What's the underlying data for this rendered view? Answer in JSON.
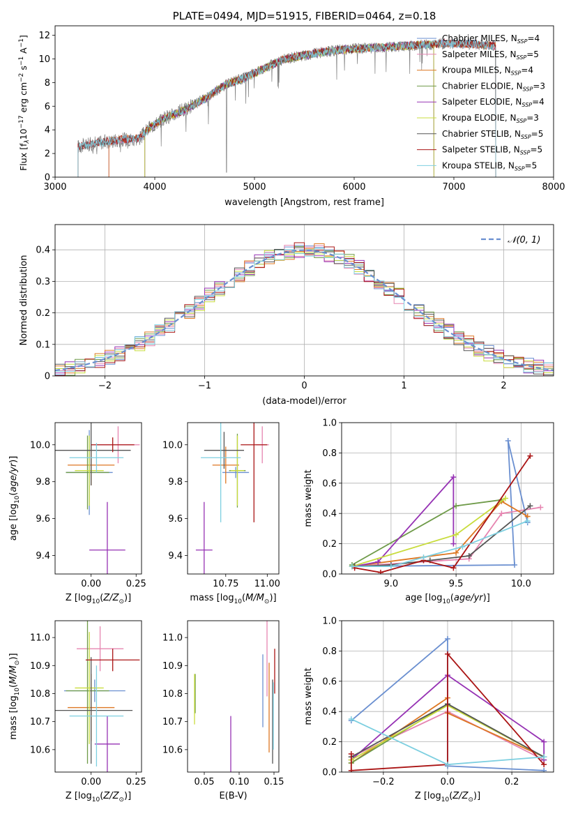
{
  "colors": {
    "blue": "#6a8fd0",
    "orange": "#dd7722",
    "green": "#6e9a48",
    "purple": "#9632b4",
    "lime": "#c8dc3c",
    "gray": "#555555",
    "red": "#aa1414",
    "cyan": "#7dcfe0",
    "pink": "#e684b0",
    "spectrum": "#808080"
  },
  "chart_data": [
    {
      "id": "spectrum",
      "type": "line",
      "title": "PLATE=0494, MJD=51915, FIBERID=0464, z=0.18",
      "xlabel": "wavelength [Angstrom, rest frame]",
      "ylabel": "Flux [f_λ10^-17 erg cm^-2 s^-1 A^-1]",
      "ylabel_parts": {
        "a": "Flux [f",
        "a_sub": "λ",
        "b": "10",
        "b_sup": "−17",
        "c": " erg cm",
        "c_sup": "−2",
        "d": " s",
        "d_sup": "−1",
        "e": " A",
        "e_sup": "−1",
        "f": "]"
      },
      "xlim": [
        3000,
        8000
      ],
      "ylim": [
        0,
        12.8
      ],
      "xticks": [
        3000,
        4000,
        5000,
        6000,
        7000,
        8000
      ],
      "yticks": [
        0,
        2,
        4,
        6,
        8,
        10,
        12
      ],
      "legend_position": "upper-right",
      "legend": [
        {
          "pre": "Chabrier MILES, N",
          "sub": "SSP",
          "post": "=4",
          "color": "blue"
        },
        {
          "pre": "Salpeter MILES, N",
          "sub": "SSP",
          "post": "=5",
          "color": "pink"
        },
        {
          "pre": "Kroupa MILES, N",
          "sub": "SSP",
          "post": "=4",
          "color": "orange"
        },
        {
          "pre": "Chabrier ELODIE, N",
          "sub": "SSP",
          "post": "=3",
          "color": "green"
        },
        {
          "pre": "Salpeter ELODIE, N",
          "sub": "SSP",
          "post": "=4",
          "color": "purple"
        },
        {
          "pre": "Kroupa ELODIE, N",
          "sub": "SSP",
          "post": "=3",
          "color": "lime"
        },
        {
          "pre": "Chabrier STELIB, N",
          "sub": "SSP",
          "post": "=5",
          "color": "gray"
        },
        {
          "pre": "Salpeter STELIB, N",
          "sub": "SSP",
          "post": "=5",
          "color": "red"
        },
        {
          "pre": "Kroupa STELIB, N",
          "sub": "SSP",
          "post": "=5",
          "color": "cyan"
        }
      ],
      "continuum": [
        [
          3230,
          2.6
        ],
        [
          3500,
          3.0
        ],
        [
          3700,
          3.2
        ],
        [
          3850,
          3.3
        ],
        [
          3950,
          4.2
        ],
        [
          4100,
          5.0
        ],
        [
          4300,
          5.7
        ],
        [
          4500,
          6.6
        ],
        [
          4700,
          7.8
        ],
        [
          4900,
          8.4
        ],
        [
          5100,
          9.2
        ],
        [
          5300,
          10.0
        ],
        [
          5500,
          10.3
        ],
        [
          5700,
          10.6
        ],
        [
          5900,
          10.8
        ],
        [
          6100,
          10.9
        ],
        [
          6300,
          11.0
        ],
        [
          6500,
          11.1
        ],
        [
          6700,
          11.2
        ],
        [
          6900,
          11.3
        ],
        [
          7100,
          11.3
        ],
        [
          7300,
          11.2
        ],
        [
          7420,
          11.1
        ]
      ],
      "model_ranges": {
        "MILES": [
          3540,
          7420
        ],
        "ELODIE": [
          3900,
          6800
        ],
        "STELIB": [
          3230,
          7420
        ]
      }
    },
    {
      "id": "residuals",
      "type": "histogram",
      "xlabel": "(data-model)/error",
      "ylabel": "Normed distribution",
      "xlim": [
        -2.5,
        2.5
      ],
      "ylim": [
        0,
        0.48
      ],
      "xticks": [
        -2,
        -1,
        0,
        1,
        2
      ],
      "xtick_labels": [
        "−2",
        "−1",
        "0",
        "1",
        "2"
      ],
      "yticks": [
        0.0,
        0.1,
        0.2,
        0.3,
        0.4
      ],
      "grid": true,
      "bin_width": 0.1,
      "legend": [
        {
          "label": "𝒩(0, 1)",
          "color": "blue"
        }
      ],
      "legend_position": "upper-right"
    },
    {
      "id": "age-vs-Z",
      "type": "errorbar",
      "xlabel": "Z [log10(Z/Z⊙)]",
      "ylabel": "age  [log10(age/yr)]",
      "xlim": [
        -0.2,
        0.28
      ],
      "ylim": [
        9.3,
        10.12
      ],
      "xticks": [
        0.0,
        0.25
      ],
      "xtick_labels": [
        "0.00",
        "0.25"
      ],
      "yticks": [
        9.4,
        9.6,
        9.8,
        10.0
      ],
      "ytick_labels": [
        "9.4",
        "9.6",
        "9.8",
        "10.0"
      ],
      "points": [
        {
          "c": "blue",
          "x": -0.01,
          "y": 9.85,
          "xerr": 0.13,
          "yerr": 0.23
        },
        {
          "c": "pink",
          "x": 0.15,
          "y": 10.0,
          "xerr": 0.12,
          "yerr": 0.1
        },
        {
          "c": "orange",
          "x": 0.0,
          "y": 9.89,
          "xerr": 0.13,
          "yerr": 0.11
        },
        {
          "c": "green",
          "x": -0.02,
          "y": 9.85,
          "xerr": 0.12,
          "yerr": 0.2
        },
        {
          "c": "purple",
          "x": 0.09,
          "y": 9.43,
          "xerr": 0.1,
          "yerr": 0.26
        },
        {
          "c": "lime",
          "x": -0.01,
          "y": 9.86,
          "xerr": 0.08,
          "yerr": 0.19
        },
        {
          "c": "gray",
          "x": 0.0,
          "y": 9.97,
          "xerr": 0.22,
          "yerr": 0.19
        },
        {
          "c": "red",
          "x": 0.12,
          "y": 10.0,
          "xerr": 0.12,
          "yerr": 0.04
        },
        {
          "c": "cyan",
          "x": 0.03,
          "y": 9.93,
          "xerr": 0.15,
          "yerr": 0.08
        }
      ]
    },
    {
      "id": "age-vs-mass",
      "type": "errorbar",
      "xlabel": "mass [log10(M/M⊙)]",
      "ylabel": "",
      "xlim": [
        10.52,
        11.07
      ],
      "ylim": [
        9.3,
        10.12
      ],
      "xticks": [
        10.75,
        11.0
      ],
      "xtick_labels": [
        "10.75",
        "11.00"
      ],
      "yticks": [
        9.4,
        9.6,
        9.8,
        10.0
      ],
      "ytick_labels": [
        "9.4",
        "9.6",
        "9.8",
        "10.0"
      ],
      "points": [
        {
          "c": "blue",
          "x": 10.81,
          "y": 9.85,
          "xerr": 0.08,
          "yerr": 0.03
        },
        {
          "c": "pink",
          "x": 10.97,
          "y": 10.0,
          "xerr": 0.04,
          "yerr": 0.1
        },
        {
          "c": "orange",
          "x": 10.75,
          "y": 9.89,
          "xerr": 0.08,
          "yerr": 0.1
        },
        {
          "c": "green",
          "x": 10.82,
          "y": 9.86,
          "xerr": 0.05,
          "yerr": 0.2
        },
        {
          "c": "purple",
          "x": 10.62,
          "y": 9.43,
          "xerr": 0.05,
          "yerr": 0.26
        },
        {
          "c": "lime",
          "x": 10.82,
          "y": 9.86,
          "xerr": 0.04,
          "yerr": 0.19
        },
        {
          "c": "gray",
          "x": 10.74,
          "y": 9.97,
          "xerr": 0.12,
          "yerr": 0.1
        },
        {
          "c": "red",
          "x": 10.92,
          "y": 10.0,
          "xerr": 0.08,
          "yerr": 0.42
        },
        {
          "c": "cyan",
          "x": 10.72,
          "y": 9.93,
          "xerr": 0.12,
          "yerr": 0.35
        }
      ]
    },
    {
      "id": "weight-vs-age",
      "type": "line",
      "xlabel": "age  [log10(age/yr)]",
      "ylabel": "mass weight",
      "xlim": [
        8.62,
        10.25
      ],
      "ylim": [
        0,
        1.0
      ],
      "xticks": [
        9.0,
        9.5,
        10.0
      ],
      "xtick_labels": [
        "9.0",
        "9.5",
        "10.0"
      ],
      "yticks": [
        0.0,
        0.2,
        0.4,
        0.6,
        0.8,
        1.0
      ],
      "ytick_labels": [
        "0.0",
        "0.2",
        "0.4",
        "0.6",
        "0.8",
        "1.0"
      ],
      "grid": true,
      "series": [
        {
          "c": "blue",
          "x": [
            8.7,
            9.95,
            9.9,
            10.05
          ],
          "y": [
            0.05,
            0.06,
            0.88,
            0.34
          ]
        },
        {
          "c": "pink",
          "x": [
            8.7,
            9.6,
            9.85,
            10.15
          ],
          "y": [
            0.05,
            0.1,
            0.4,
            0.44
          ]
        },
        {
          "c": "orange",
          "x": [
            8.7,
            9.5,
            9.85,
            10.05
          ],
          "y": [
            0.05,
            0.14,
            0.48,
            0.38
          ]
        },
        {
          "c": "green",
          "x": [
            8.7,
            9.5,
            9.85
          ],
          "y": [
            0.06,
            0.45,
            0.49
          ]
        },
        {
          "c": "purple",
          "x": [
            8.72,
            8.9,
            9.48,
            9.48
          ],
          "y": [
            0.05,
            0.08,
            0.64,
            0.2
          ]
        },
        {
          "c": "lime",
          "x": [
            8.7,
            9.5,
            9.88
          ],
          "y": [
            0.05,
            0.26,
            0.5
          ]
        },
        {
          "c": "gray",
          "x": [
            8.72,
            9.0,
            9.3,
            9.6,
            10.07
          ],
          "y": [
            0.05,
            0.06,
            0.09,
            0.12,
            0.45
          ]
        },
        {
          "c": "red",
          "x": [
            8.72,
            8.92,
            9.25,
            9.48,
            10.07
          ],
          "y": [
            0.04,
            0.01,
            0.09,
            0.04,
            0.78
          ]
        },
        {
          "c": "cyan",
          "x": [
            8.7,
            9.0,
            9.25,
            9.55,
            10.05
          ],
          "y": [
            0.05,
            0.05,
            0.11,
            0.18,
            0.35
          ]
        }
      ]
    },
    {
      "id": "mass-vs-Z",
      "type": "errorbar",
      "xlabel": "Z [log10(Z/Z⊙)]",
      "ylabel": "mass [log10(M/M⊙)]",
      "xlim": [
        -0.2,
        0.28
      ],
      "ylim": [
        10.52,
        11.06
      ],
      "xticks": [
        0.0,
        0.25
      ],
      "xtick_labels": [
        "0.00",
        "0.25"
      ],
      "yticks": [
        10.6,
        10.7,
        10.8,
        10.9,
        11.0
      ],
      "ytick_labels": [
        "10.6",
        "10.7",
        "10.8",
        "10.9",
        "11.0"
      ],
      "points": [
        {
          "c": "blue",
          "x": 0.02,
          "y": 10.81,
          "xerr": 0.17,
          "yerr": 0.04
        },
        {
          "c": "pink",
          "x": 0.05,
          "y": 10.96,
          "xerr": 0.13,
          "yerr": 0.08
        },
        {
          "c": "orange",
          "x": 0.0,
          "y": 10.75,
          "xerr": 0.13,
          "yerr": 0.12
        },
        {
          "c": "green",
          "x": -0.02,
          "y": 10.81,
          "xerr": 0.12,
          "yerr": 0.26
        },
        {
          "c": "purple",
          "x": 0.09,
          "y": 10.62,
          "xerr": 0.07,
          "yerr": 0.1
        },
        {
          "c": "lime",
          "x": -0.01,
          "y": 10.82,
          "xerr": 0.08,
          "yerr": 0.2
        },
        {
          "c": "gray",
          "x": 0.0,
          "y": 10.74,
          "xerr": 0.23,
          "yerr": 0.19
        },
        {
          "c": "red",
          "x": 0.12,
          "y": 10.92,
          "xerr": 0.15,
          "yerr": 0.04
        },
        {
          "c": "cyan",
          "x": 0.03,
          "y": 10.72,
          "xerr": 0.15,
          "yerr": 0.18
        }
      ]
    },
    {
      "id": "mass-vs-EBV",
      "type": "errorbar",
      "xlabel": "E(B-V)",
      "ylabel": "",
      "xlim": [
        0.026,
        0.157
      ],
      "ylim": [
        10.52,
        11.06
      ],
      "xticks": [
        0.05,
        0.1,
        0.15
      ],
      "xtick_labels": [
        "0.05",
        "0.10",
        "0.15"
      ],
      "yticks": [
        10.6,
        10.7,
        10.8,
        10.9,
        11.0
      ],
      "ytick_labels": [
        "10.6",
        "10.7",
        "10.8",
        "10.9",
        "11.0"
      ],
      "points": [
        {
          "c": "blue",
          "x": 0.134,
          "y": 10.81,
          "xerr": 0,
          "yerr": 0.13
        },
        {
          "c": "pink",
          "x": 0.14,
          "y": 10.96,
          "xerr": 0,
          "yerr": 0.17
        },
        {
          "c": "orange",
          "x": 0.143,
          "y": 10.75,
          "xerr": 0,
          "yerr": 0.16
        },
        {
          "c": "green",
          "x": 0.037,
          "y": 10.8,
          "xerr": 0,
          "yerr": 0.07
        },
        {
          "c": "purple",
          "x": 0.088,
          "y": 10.62,
          "xerr": 0,
          "yerr": 0.1
        },
        {
          "c": "lime",
          "x": 0.036,
          "y": 10.78,
          "xerr": 0,
          "yerr": 0.09
        },
        {
          "c": "gray",
          "x": 0.148,
          "y": 10.7,
          "xerr": 0,
          "yerr": 0.15
        },
        {
          "c": "red",
          "x": 0.151,
          "y": 10.88,
          "xerr": 0,
          "yerr": 0.08
        },
        {
          "c": "cyan",
          "x": 0.149,
          "y": 10.72,
          "xerr": 0,
          "yerr": 0.12
        }
      ]
    },
    {
      "id": "weight-vs-Z",
      "type": "line",
      "xlabel": "Z [log10(Z/Z⊙)]",
      "ylabel": "mass weight",
      "xlim": [
        -0.33,
        0.33
      ],
      "ylim": [
        0,
        1.0
      ],
      "xticks": [
        -0.2,
        0.0,
        0.2
      ],
      "xtick_labels": [
        "−0.2",
        "0.0",
        "0.2"
      ],
      "yticks": [
        0.0,
        0.2,
        0.4,
        0.6,
        0.8,
        1.0
      ],
      "ytick_labels": [
        "0.0",
        "0.2",
        "0.4",
        "0.6",
        "0.8",
        "1.0"
      ],
      "grid": true,
      "series": [
        {
          "c": "blue",
          "x": [
            -0.3,
            0.0,
            0.0,
            0.3
          ],
          "y": [
            0.34,
            0.88,
            0.04,
            0.01
          ]
        },
        {
          "c": "pink",
          "x": [
            -0.3,
            0.0,
            0.3
          ],
          "y": [
            0.1,
            0.4,
            0.08
          ]
        },
        {
          "c": "orange",
          "x": [
            -0.3,
            0.0,
            0.0,
            0.3
          ],
          "y": [
            0.06,
            0.49,
            0.39,
            0.1
          ]
        },
        {
          "c": "green",
          "x": [
            -0.3,
            0.0,
            0.3
          ],
          "y": [
            0.06,
            0.45,
            0.1
          ]
        },
        {
          "c": "purple",
          "x": [
            -0.3,
            0.0,
            0.3,
            0.3
          ],
          "y": [
            0.08,
            0.64,
            0.2,
            0.08
          ]
        },
        {
          "c": "lime",
          "x": [
            -0.3,
            0.0,
            0.3
          ],
          "y": [
            0.08,
            0.44,
            0.1
          ]
        },
        {
          "c": "gray",
          "x": [
            -0.3,
            0.0,
            0.3
          ],
          "y": [
            0.1,
            0.45,
            0.1
          ]
        },
        {
          "c": "red",
          "x": [
            -0.3,
            -0.3,
            0.0,
            0.0,
            0.3
          ],
          "y": [
            0.12,
            0.01,
            0.05,
            0.78,
            0.05
          ]
        },
        {
          "c": "cyan",
          "x": [
            -0.3,
            0.0,
            0.3
          ],
          "y": [
            0.35,
            0.05,
            0.1
          ]
        }
      ]
    }
  ]
}
